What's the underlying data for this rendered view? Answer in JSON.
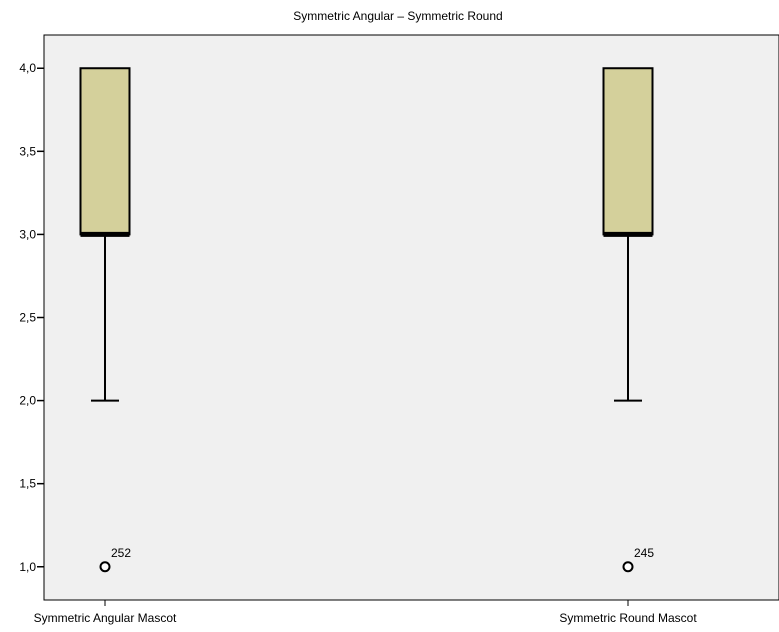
{
  "chart_data": {
    "type": "box",
    "title": "Symmetric Angular – Symmetric Round",
    "xlabel": "",
    "ylabel": "",
    "ylim": [
      0.8,
      4.2
    ],
    "y_ticks": [
      1.0,
      1.5,
      2.0,
      2.5,
      3.0,
      3.5,
      4.0
    ],
    "y_tick_labels": [
      "1,0",
      "1,5",
      "2,0",
      "2,5",
      "3,0",
      "3,5",
      "4,0"
    ],
    "grid": false,
    "categories": [
      "Symmetric Angular Mascot",
      "Symmetric Round Mascot"
    ],
    "boxes": [
      {
        "category": "Symmetric Angular Mascot",
        "whisker_low": 2.0,
        "q1": 3.0,
        "median": 3.0,
        "q3": 4.0,
        "whisker_high": 4.0,
        "outliers": [
          {
            "value": 1.0,
            "label": "252"
          }
        ]
      },
      {
        "category": "Symmetric Round Mascot",
        "whisker_low": 2.0,
        "q1": 3.0,
        "median": 3.0,
        "q3": 4.0,
        "whisker_high": 4.0,
        "outliers": [
          {
            "value": 1.0,
            "label": "245"
          }
        ]
      }
    ],
    "colors": {
      "plot_background": "#f0f0f0",
      "box_fill": "#d4d09b",
      "stroke": "#000000"
    }
  }
}
